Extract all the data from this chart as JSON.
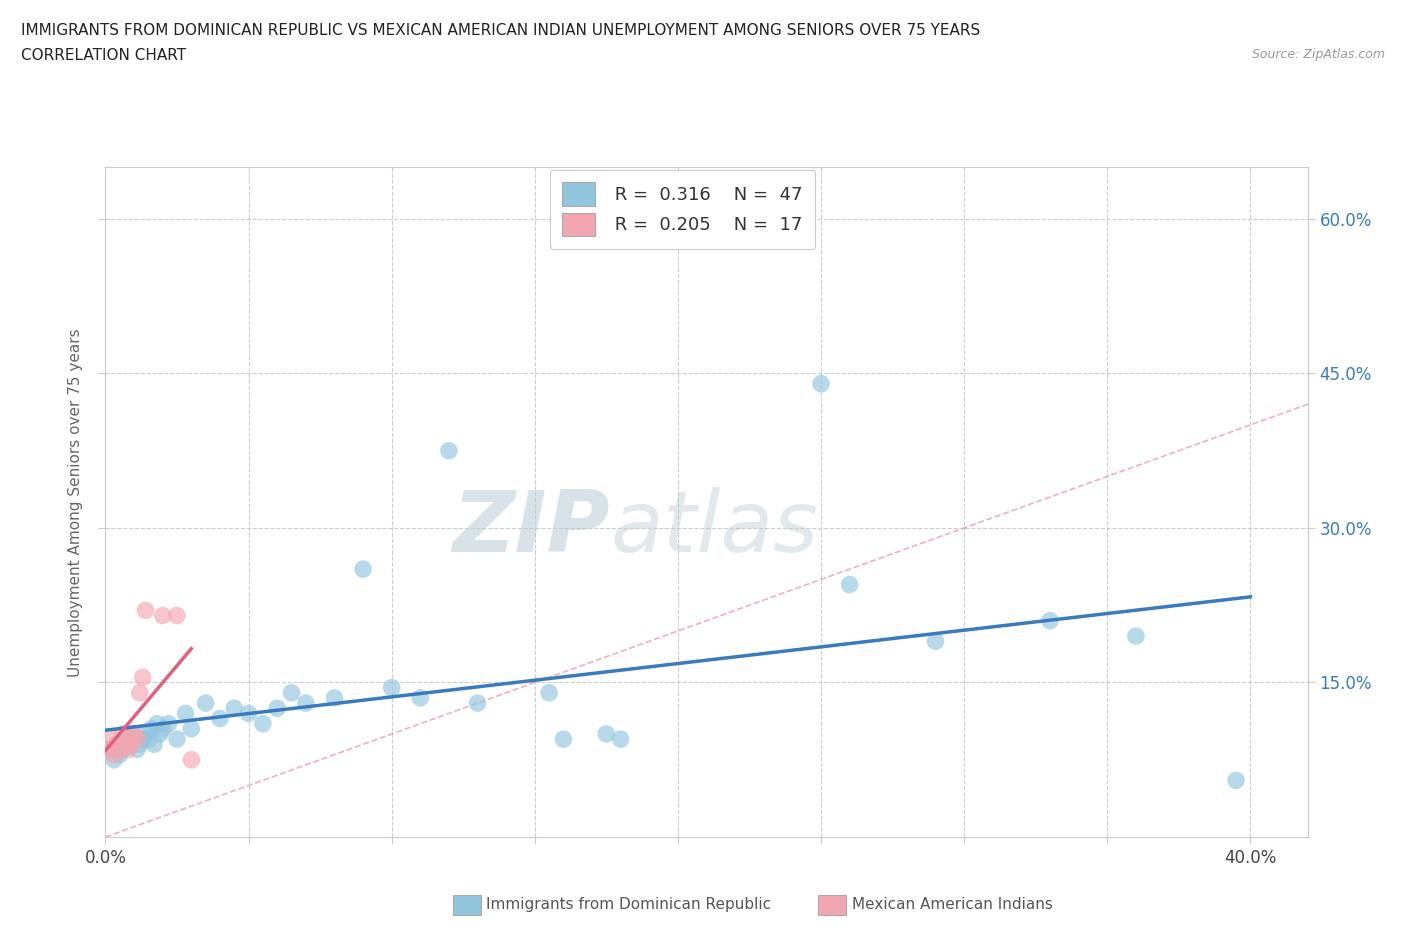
{
  "title_line1": "IMMIGRANTS FROM DOMINICAN REPUBLIC VS MEXICAN AMERICAN INDIAN UNEMPLOYMENT AMONG SENIORS OVER 75 YEARS",
  "title_line2": "CORRELATION CHART",
  "source": "Source: ZipAtlas.com",
  "ylabel": "Unemployment Among Seniors over 75 years",
  "ytick_labels": [
    "15.0%",
    "30.0%",
    "45.0%",
    "60.0%"
  ],
  "ytick_values": [
    0.15,
    0.3,
    0.45,
    0.6
  ],
  "xtick_labels": [
    "0.0%",
    "40.0%"
  ],
  "xlim": [
    0.0,
    0.42
  ],
  "ylim": [
    0.0,
    0.65
  ],
  "legend_r1": "R =  0.316",
  "legend_n1": "N =  47",
  "legend_r2": "R =  0.205",
  "legend_n2": "N =  17",
  "watermark_zip": "ZIP",
  "watermark_atlas": "atlas",
  "blue_color": "#92c5de",
  "pink_color": "#f4a6b0",
  "blue_line_color": "#3a7bbf",
  "pink_line_color": "#e06080",
  "diag_line_color": "#e8a0a8",
  "bottom_legend_blue": "Immigrants from Dominican Republic",
  "bottom_legend_pink": "Mexican American Indians",
  "blue_scatter_x": [
    0.002,
    0.003,
    0.004,
    0.005,
    0.006,
    0.007,
    0.008,
    0.009,
    0.01,
    0.011,
    0.012,
    0.013,
    0.014,
    0.015,
    0.016,
    0.017,
    0.018,
    0.019,
    0.02,
    0.022,
    0.025,
    0.028,
    0.03,
    0.035,
    0.04,
    0.045,
    0.05,
    0.055,
    0.06,
    0.065,
    0.07,
    0.08,
    0.09,
    0.1,
    0.11,
    0.12,
    0.13,
    0.155,
    0.16,
    0.175,
    0.18,
    0.25,
    0.26,
    0.29,
    0.33,
    0.36,
    0.395
  ],
  "blue_scatter_y": [
    0.085,
    0.075,
    0.09,
    0.08,
    0.085,
    0.095,
    0.09,
    0.1,
    0.095,
    0.085,
    0.09,
    0.095,
    0.1,
    0.095,
    0.105,
    0.09,
    0.11,
    0.1,
    0.105,
    0.11,
    0.095,
    0.12,
    0.105,
    0.13,
    0.115,
    0.125,
    0.12,
    0.11,
    0.125,
    0.14,
    0.13,
    0.135,
    0.26,
    0.145,
    0.135,
    0.375,
    0.13,
    0.14,
    0.095,
    0.1,
    0.095,
    0.44,
    0.245,
    0.19,
    0.21,
    0.195,
    0.055
  ],
  "pink_scatter_x": [
    0.001,
    0.002,
    0.003,
    0.004,
    0.005,
    0.006,
    0.007,
    0.008,
    0.009,
    0.01,
    0.011,
    0.012,
    0.013,
    0.014,
    0.02,
    0.025,
    0.03
  ],
  "pink_scatter_y": [
    0.085,
    0.095,
    0.08,
    0.09,
    0.085,
    0.1,
    0.095,
    0.085,
    0.09,
    0.1,
    0.095,
    0.14,
    0.155,
    0.22,
    0.215,
    0.215,
    0.075
  ]
}
